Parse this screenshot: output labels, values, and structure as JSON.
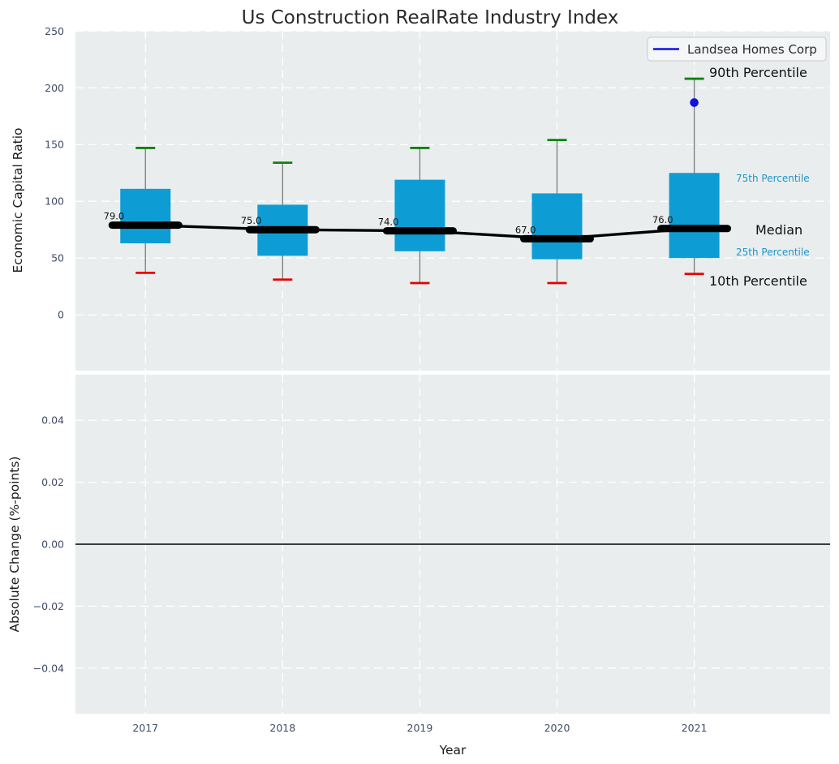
{
  "figure": {
    "title": "Us Construction RealRate Industry Index",
    "background": "#ffffff",
    "plot_background": "#e9edee"
  },
  "legend": {
    "label": "Landsea Homes Corp",
    "position": "upper right",
    "line_color": "#1212e0"
  },
  "annotations": {
    "p90": "90th Percentile",
    "p75": "75th Percentile",
    "median": "Median",
    "p25": "25th Percentile",
    "p10": "10th Percentile"
  },
  "colors": {
    "box_fill": "#0d9dd4",
    "whisker": "#7a7a7a",
    "cap_top": "#118011",
    "cap_bottom": "#e60000",
    "median_line": "#000000",
    "company_point": "#1212dd",
    "percentile_label": "#1e96c8",
    "tick_label": "#3f4c66",
    "grid": "#ffffff",
    "zero_line": "#000000"
  },
  "chart_data": [
    {
      "type": "boxplot",
      "title": "Us Construction RealRate Industry Index",
      "ylabel": "Economic Capital Ratio",
      "categories": [
        "2017",
        "2018",
        "2019",
        "2020",
        "2021"
      ],
      "x": [
        2017,
        2018,
        2019,
        2020,
        2021
      ],
      "xlim": [
        2016.49,
        2021.99
      ],
      "ylim": [
        -49.2,
        250
      ],
      "yticks": [
        0,
        50,
        100,
        150,
        200,
        250
      ],
      "ytick_labels": [
        "0",
        "50",
        "100",
        "150",
        "200",
        "250"
      ],
      "grid": "white dashed, horizontal and vertical",
      "legend_position": "upper right",
      "series": [
        {
          "name": "90th Percentile",
          "values": [
            147,
            134,
            147,
            154,
            208
          ]
        },
        {
          "name": "75th Percentile",
          "values": [
            111,
            97,
            119,
            107,
            125
          ]
        },
        {
          "name": "Median",
          "values": [
            79,
            75,
            74,
            67,
            76
          ]
        },
        {
          "name": "25th Percentile",
          "values": [
            63,
            52,
            56,
            49,
            50
          ]
        },
        {
          "name": "10th Percentile",
          "values": [
            37,
            31,
            28,
            28,
            36
          ]
        }
      ],
      "median_labels": [
        "79.0",
        "75.0",
        "74.0",
        "67.0",
        "76.0"
      ],
      "company_series": {
        "name": "Landsea Homes Corp",
        "points": [
          {
            "x": 2021,
            "y": 187
          }
        ]
      }
    },
    {
      "type": "line",
      "ylabel": "Absolute Change (%-points)",
      "xlabel": "Year",
      "x": [
        2017,
        2018,
        2019,
        2020,
        2021
      ],
      "xtick_labels": [
        "2017",
        "2018",
        "2019",
        "2020",
        "2021"
      ],
      "xlim": [
        2016.49,
        2021.99
      ],
      "ylim": [
        -0.0547,
        0.0547
      ],
      "yticks": [
        0.04,
        0.02,
        0.0,
        -0.02,
        -0.04
      ],
      "ytick_labels": [
        "0.04",
        "0.02",
        "0.00",
        "−0.02",
        "−0.04"
      ],
      "zero_line_y": 0.0,
      "values": []
    }
  ]
}
